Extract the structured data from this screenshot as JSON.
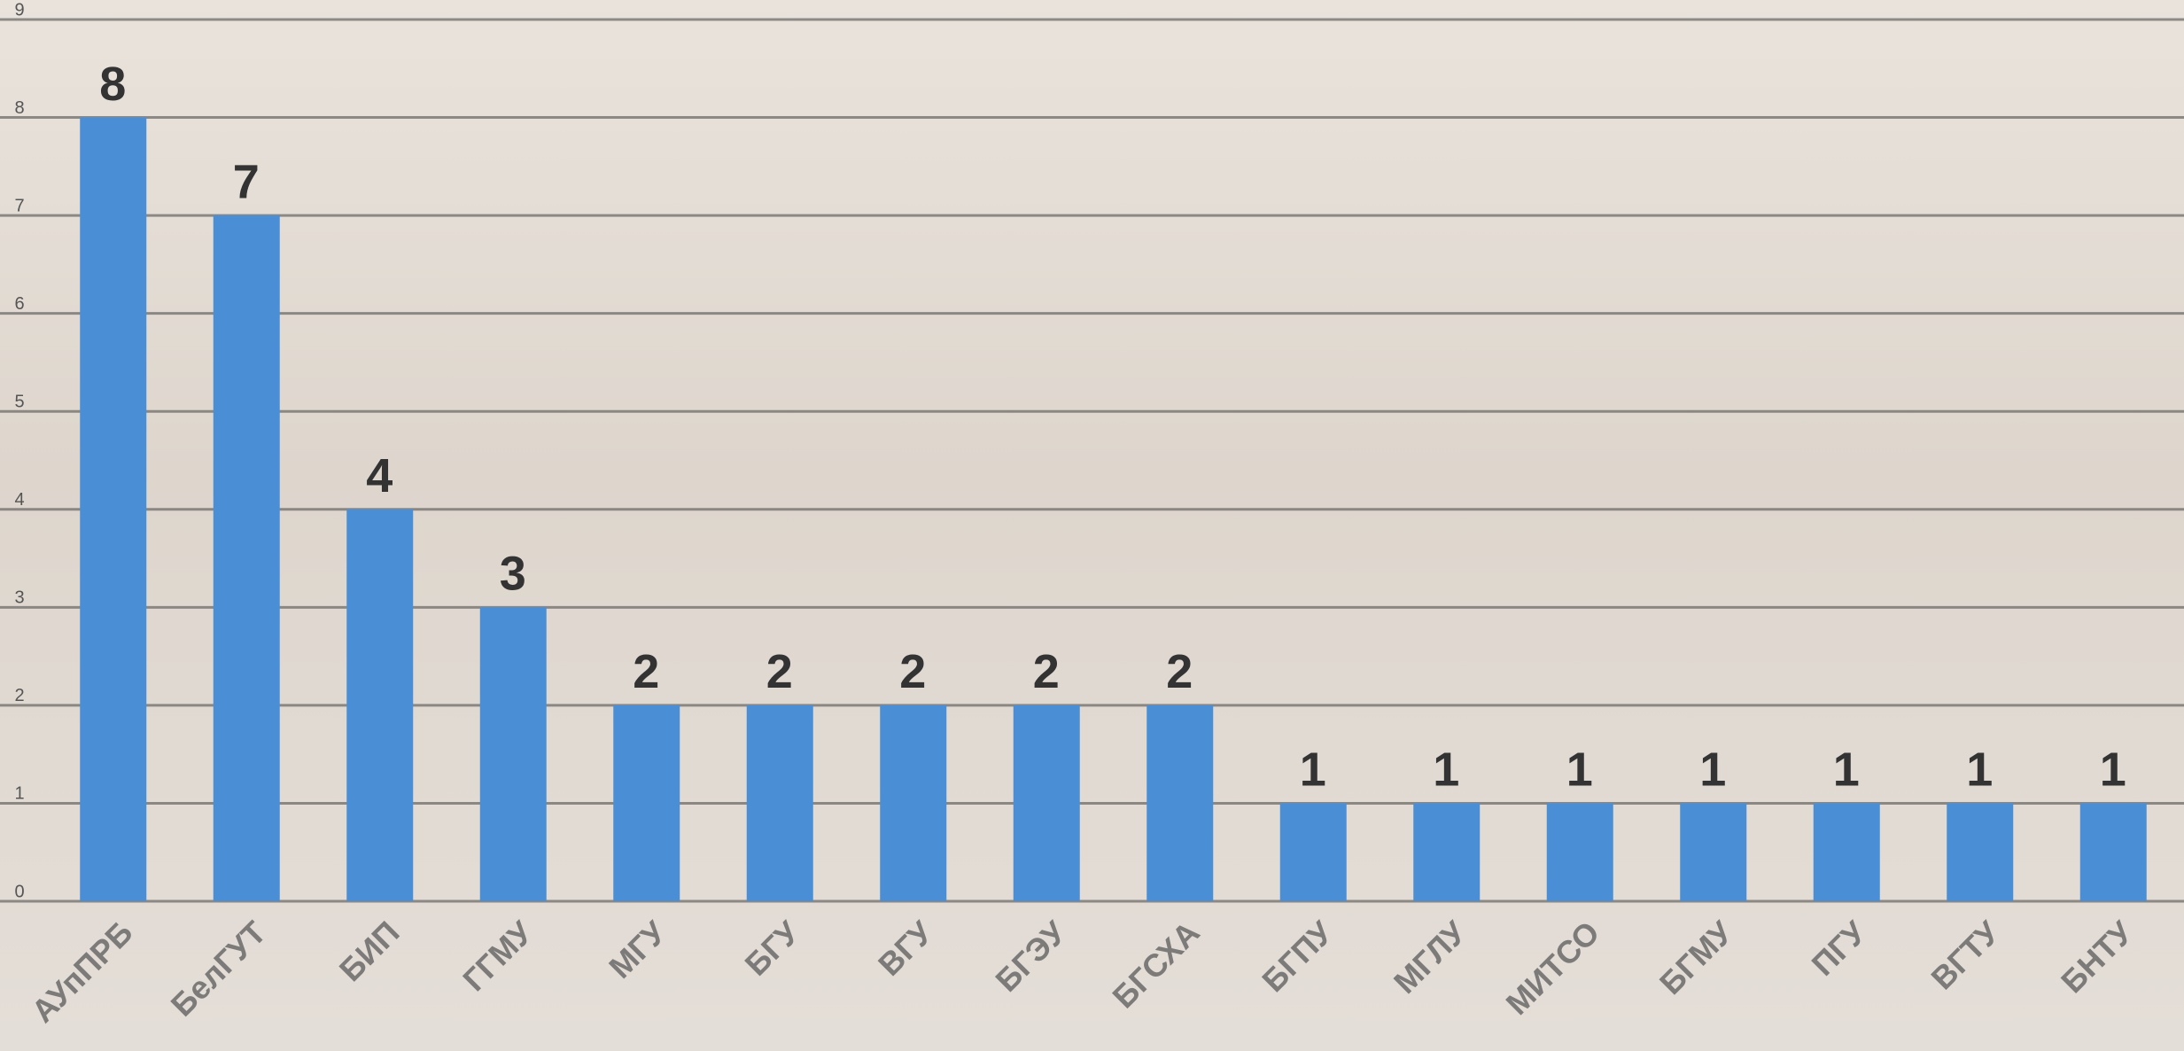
{
  "chart_data": {
    "type": "bar",
    "categories": [
      "АУпПРБ",
      "БелГУТ",
      "БИП",
      "ГГМУ",
      "МГУ",
      "БГУ",
      "ВГУ",
      "БГЭУ",
      "БГСХА",
      "БГПУ",
      "МГЛУ",
      "МИТСО",
      "БГМУ",
      "ПГУ",
      "ВГТУ",
      "БНТУ"
    ],
    "values": [
      8,
      7,
      4,
      3,
      2,
      2,
      2,
      2,
      2,
      1,
      1,
      1,
      1,
      1,
      1,
      1
    ],
    "color": "#4a8fd6",
    "ylim": [
      0,
      9
    ],
    "yticks": [
      0,
      1,
      2,
      3,
      4,
      5,
      6,
      7,
      8,
      9
    ],
    "grid": true
  }
}
